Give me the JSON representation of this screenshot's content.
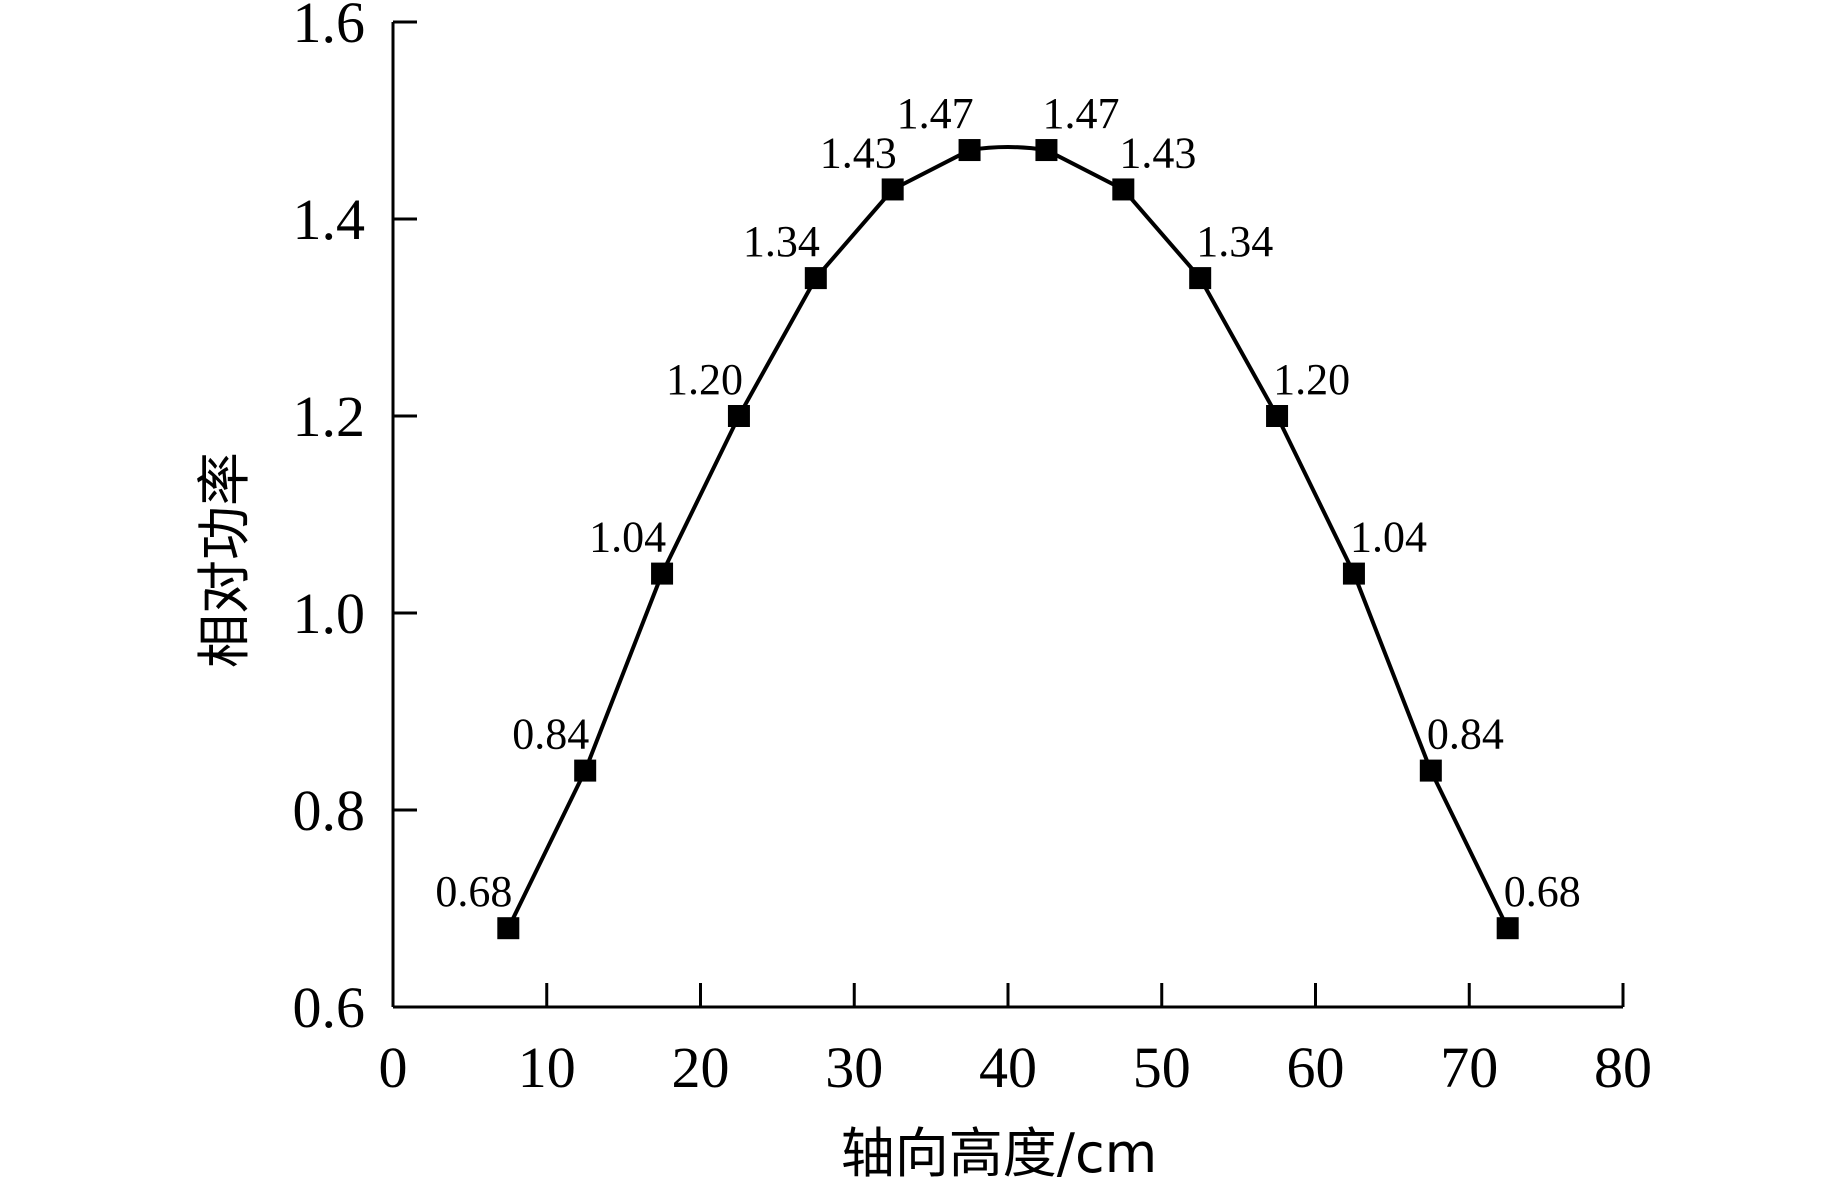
{
  "chart_data": {
    "type": "line",
    "xlabel": "轴向高度/cm",
    "ylabel": "相对功率",
    "xlim": [
      0,
      80
    ],
    "ylim": [
      0.6,
      1.6
    ],
    "x_ticks": [
      0,
      10,
      20,
      30,
      40,
      50,
      60,
      70,
      80
    ],
    "x_tick_labels": [
      "0",
      "10",
      "20",
      "30",
      "40",
      "50",
      "60",
      "70",
      "80"
    ],
    "y_ticks": [
      0.6,
      0.8,
      1.0,
      1.2,
      1.4,
      1.6
    ],
    "y_tick_labels": [
      "0.6",
      "0.8",
      "1.0",
      "1.2",
      "1.4",
      "1.6"
    ],
    "grid": false,
    "marker": "square",
    "line_color": "#000000",
    "series": [
      {
        "x": [
          7.5,
          12.5,
          17.5,
          22.5,
          27.5,
          32.5,
          37.5,
          42.5,
          47.5,
          52.5,
          57.5,
          62.5,
          67.5,
          72.5
        ],
        "y": [
          0.68,
          0.84,
          1.04,
          1.2,
          1.34,
          1.43,
          1.47,
          1.47,
          1.43,
          1.34,
          1.2,
          1.04,
          0.84,
          0.68
        ],
        "labels": [
          "0.68",
          "0.84",
          "1.04",
          "1.20",
          "1.34",
          "1.43",
          "1.47",
          "1.47",
          "1.43",
          "1.34",
          "1.20",
          "1.04",
          "0.84",
          "0.68"
        ]
      }
    ]
  }
}
